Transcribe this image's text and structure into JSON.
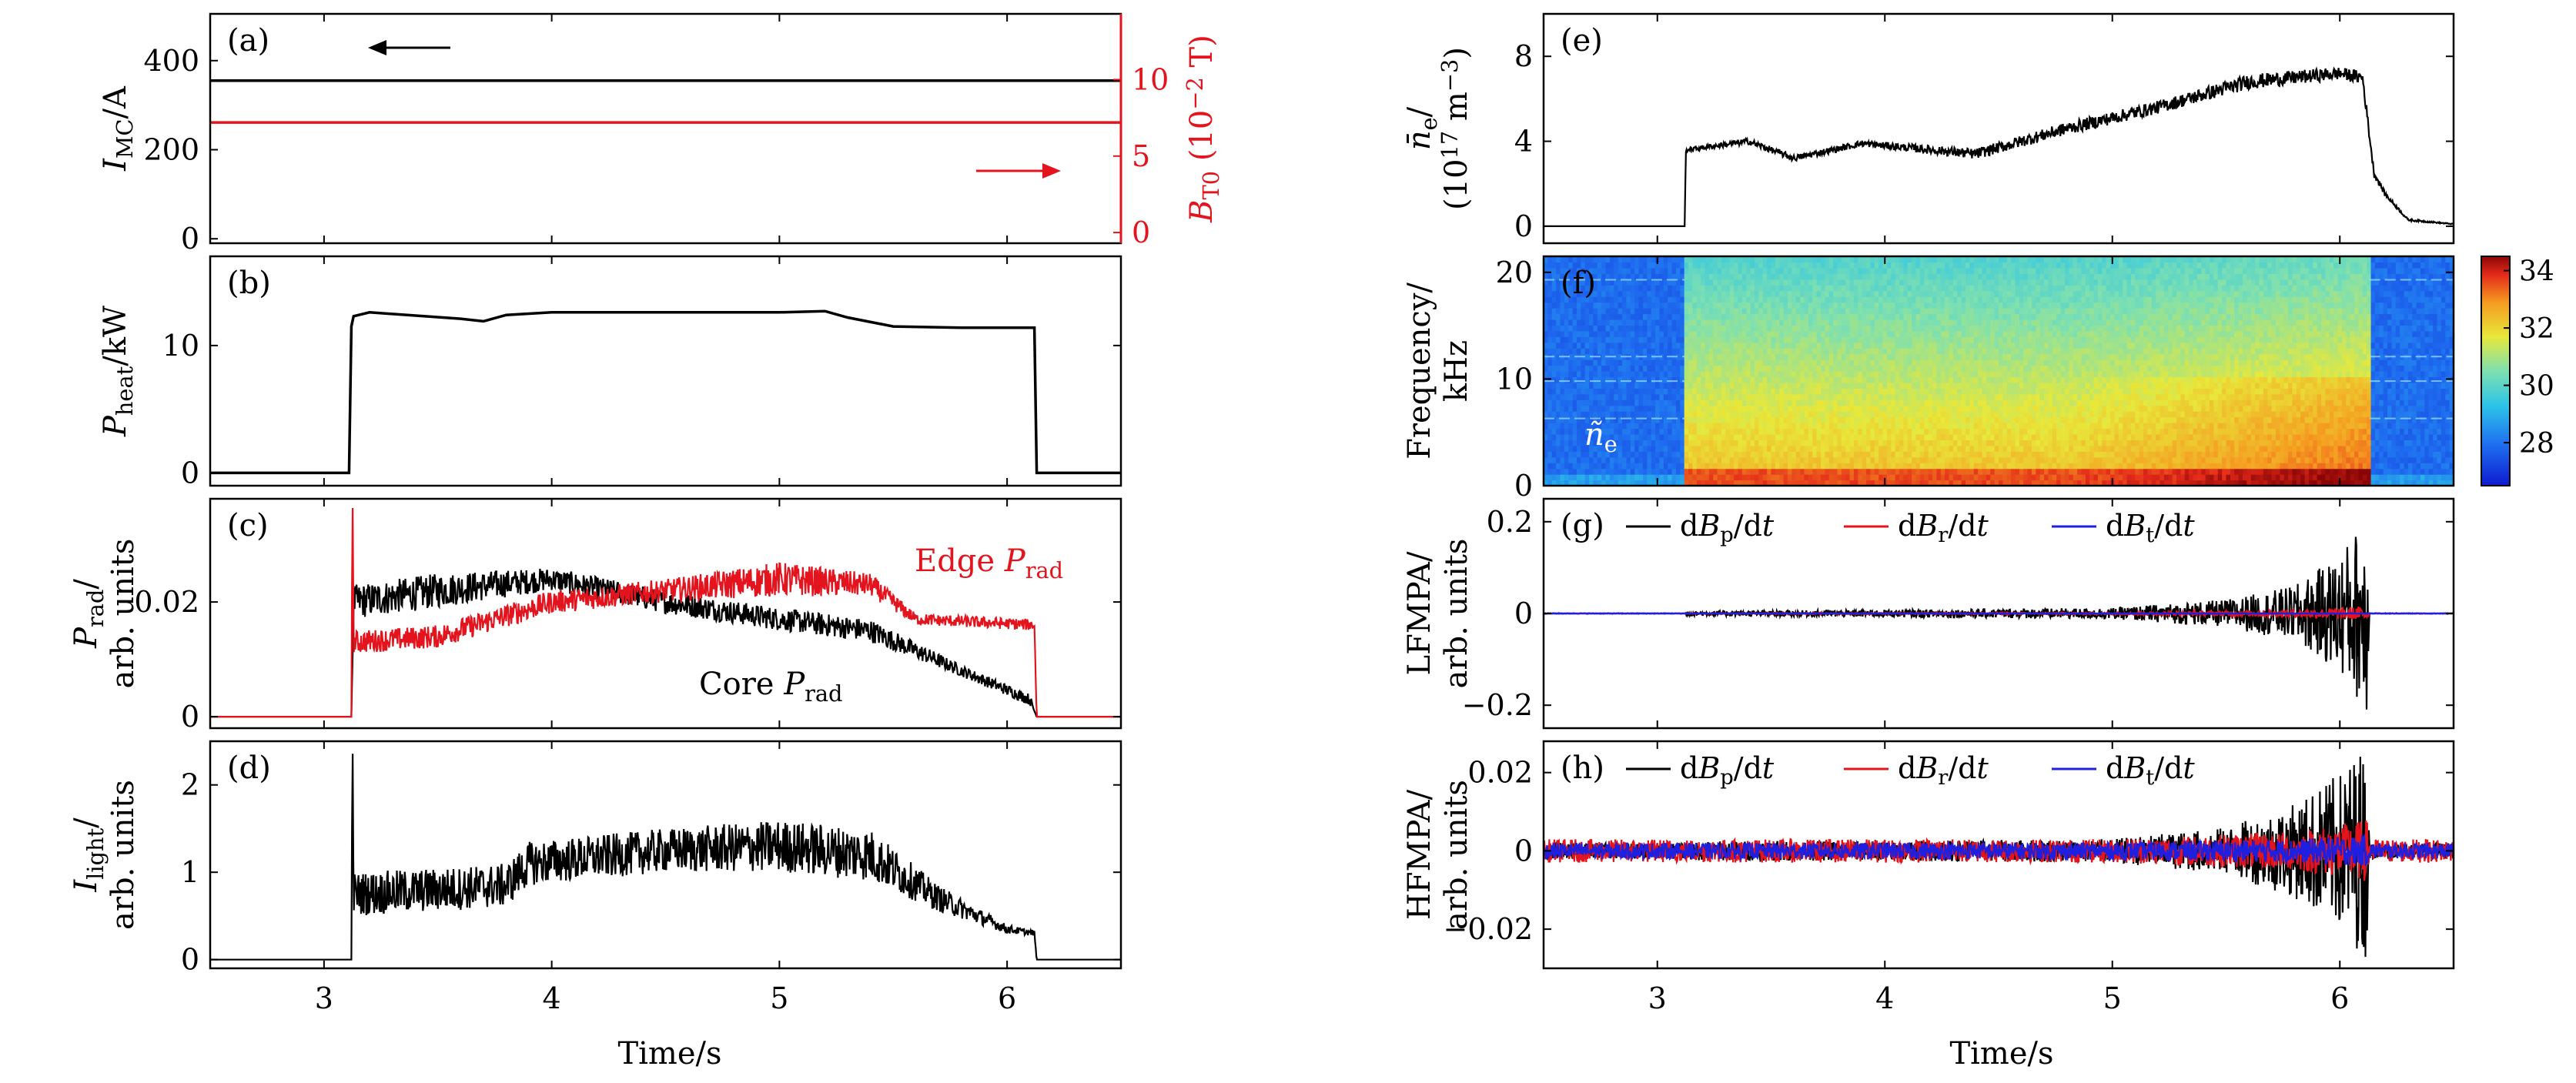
{
  "figure": {
    "left_xlabel": "Time/s",
    "right_xlabel": "Time/s"
  },
  "chart_data": [
    {
      "id": "a",
      "label": "(a)",
      "type": "line",
      "xlim": [
        2.5,
        6.5
      ],
      "xticks": [
        3,
        4,
        5,
        6
      ],
      "ylim": [
        -10,
        505
      ],
      "yticks": [
        0,
        200,
        400
      ],
      "ylabel": "I_MC/A",
      "y2label": "B_T0 (10^-2 T)",
      "y2lim": [
        -0.7,
        14.3
      ],
      "y2ticks": [
        0,
        5,
        10
      ],
      "y2color": "#e4141e",
      "annotations": [
        {
          "kind": "arrow",
          "direction": "left",
          "color": "#000000",
          "axis": "left"
        },
        {
          "kind": "arrow",
          "direction": "right",
          "color": "#e4141e",
          "axis": "right"
        }
      ],
      "series": [
        {
          "axis": "left",
          "color": "#000000",
          "x": [
            2.5,
            6.5
          ],
          "y": [
            355,
            355
          ]
        },
        {
          "axis": "right",
          "color": "#e4141e",
          "x": [
            2.5,
            6.5
          ],
          "y": [
            7.2,
            7.2
          ]
        }
      ]
    },
    {
      "id": "b",
      "label": "(b)",
      "type": "line",
      "xlim": [
        2.5,
        6.5
      ],
      "xticks": [
        3,
        4,
        5,
        6
      ],
      "ylim": [
        -1,
        17
      ],
      "yticks": [
        0,
        10
      ],
      "ylabel": "P_heat/kW",
      "series": [
        {
          "color": "#000000",
          "x": [
            2.5,
            3.11,
            3.12,
            3.13,
            3.2,
            3.6,
            3.7,
            3.8,
            4.0,
            4.5,
            5.0,
            5.2,
            5.3,
            5.5,
            5.8,
            6.12,
            6.13,
            6.5
          ],
          "y": [
            0,
            0,
            11.5,
            12.3,
            12.6,
            12.1,
            11.9,
            12.4,
            12.6,
            12.6,
            12.6,
            12.7,
            12.2,
            11.5,
            11.4,
            11.4,
            0,
            0
          ]
        }
      ]
    },
    {
      "id": "c",
      "label": "(c)",
      "type": "line",
      "xlim": [
        2.5,
        6.5
      ],
      "xticks": [
        3,
        4,
        5,
        6
      ],
      "ylim": [
        -0.002,
        0.038
      ],
      "yticks": [
        0,
        0.02
      ],
      "yticklabels": [
        "0",
        "0.02"
      ],
      "ylabel": "P_rad/ arb. units",
      "annotations": [
        {
          "kind": "text",
          "text": "Edge P_rad",
          "color": "#e4141e"
        },
        {
          "kind": "text",
          "text": "Core P_rad",
          "color": "#000000"
        }
      ],
      "series": [
        {
          "name": "Core P_rad",
          "color": "#000000",
          "kind": "noisy_trace",
          "x": [
            2.5,
            3.12,
            3.13,
            3.5,
            4.0,
            4.5,
            5.0,
            5.4,
            5.8,
            6.1,
            6.13,
            6.5
          ],
          "y": [
            0,
            0,
            0.02,
            0.022,
            0.024,
            0.02,
            0.017,
            0.015,
            0.008,
            0.003,
            0,
            0
          ],
          "noise": [
            0,
            0,
            0.003,
            0.003,
            0.002,
            0.002,
            0.002,
            0.002,
            0.001,
            0.001,
            0,
            0
          ]
        },
        {
          "name": "Edge P_rad",
          "color": "#e4141e",
          "kind": "noisy_trace",
          "x": [
            2.5,
            3.12,
            3.125,
            3.13,
            3.5,
            4.0,
            4.5,
            5.0,
            5.4,
            5.6,
            6.12,
            6.13,
            6.5
          ],
          "y": [
            0,
            0,
            0.04,
            0.013,
            0.014,
            0.02,
            0.022,
            0.024,
            0.023,
            0.017,
            0.016,
            0,
            0
          ],
          "noise": [
            0,
            0,
            0,
            0.002,
            0.002,
            0.002,
            0.002,
            0.003,
            0.002,
            0.001,
            0.001,
            0,
            0
          ]
        }
      ]
    },
    {
      "id": "d",
      "label": "(d)",
      "type": "line",
      "xlim": [
        2.5,
        6.5
      ],
      "xticks": [
        3,
        4,
        5,
        6
      ],
      "ylim": [
        -0.1,
        2.5
      ],
      "yticks": [
        0,
        1,
        2
      ],
      "ylabel": "I_light/ arb. units",
      "series": [
        {
          "color": "#000000",
          "kind": "noisy_trace",
          "x": [
            2.5,
            3.12,
            3.125,
            3.13,
            3.5,
            3.8,
            3.9,
            4.5,
            5.0,
            5.4,
            5.7,
            6.0,
            6.12,
            6.13,
            6.5
          ],
          "y": [
            0,
            0,
            2.6,
            0.75,
            0.8,
            0.85,
            1.1,
            1.25,
            1.3,
            1.2,
            0.7,
            0.35,
            0.3,
            0,
            0
          ],
          "noise": [
            0,
            0,
            0,
            0.25,
            0.25,
            0.25,
            0.25,
            0.25,
            0.3,
            0.3,
            0.15,
            0.05,
            0.03,
            0,
            0
          ]
        }
      ]
    },
    {
      "id": "e",
      "label": "(e)",
      "type": "line",
      "xlim": [
        2.5,
        6.5
      ],
      "xticks": [
        3,
        4,
        5,
        6
      ],
      "ylim": [
        -0.8,
        10
      ],
      "yticks": [
        0,
        4,
        8
      ],
      "ylabel": "n_e/ (10^17 m^-3)",
      "series": [
        {
          "color": "#000000",
          "kind": "noisy_trace",
          "x": [
            2.5,
            3.12,
            3.125,
            3.13,
            3.4,
            3.6,
            3.9,
            4.2,
            4.4,
            4.8,
            5.2,
            5.6,
            6.0,
            6.1,
            6.15,
            6.2,
            6.3,
            6.5
          ],
          "y": [
            0,
            0,
            3.5,
            3.6,
            4.0,
            3.2,
            3.9,
            3.6,
            3.4,
            4.6,
            5.6,
            6.8,
            7.2,
            7.0,
            2.5,
            1.5,
            0.3,
            0.1
          ],
          "noise": [
            0,
            0,
            0,
            0.1,
            0.15,
            0.15,
            0.15,
            0.2,
            0.25,
            0.3,
            0.3,
            0.35,
            0.3,
            0.3,
            0.2,
            0.1,
            0.05,
            0.02
          ]
        }
      ]
    },
    {
      "id": "f",
      "label": "(f)",
      "type": "heatmap",
      "xlim": [
        2.5,
        6.5
      ],
      "xticks": [
        3,
        4,
        5,
        6
      ],
      "ylim": [
        0,
        21.5
      ],
      "yticks": [
        0,
        10,
        20
      ],
      "ylabel": "Frequency/ kHz",
      "annotations": [
        {
          "kind": "text",
          "text": "ñ_e",
          "color": "#ffffff"
        }
      ],
      "plasma_interval": [
        3.12,
        6.13
      ],
      "colorbar": {
        "min": 26.5,
        "max": 34.5,
        "ticks": [
          28,
          30,
          32,
          34
        ]
      }
    },
    {
      "id": "g",
      "label": "(g)",
      "type": "line",
      "xlim": [
        2.5,
        6.5
      ],
      "xticks": [
        3,
        4,
        5,
        6
      ],
      "ylim": [
        -0.25,
        0.25
      ],
      "yticks": [
        -0.2,
        0,
        0.2
      ],
      "yticklabels": [
        "−0.2",
        "0",
        "0.2"
      ],
      "ylabel": "LFMPA/ arb. units",
      "legend": {
        "placement": "top",
        "entries": [
          "dB_p/dt",
          "dB_r/dt",
          "dB_t/dt"
        ]
      },
      "series": [
        {
          "name": "dB_p/dt",
          "color": "#000000",
          "kind": "envelope",
          "x": [
            2.5,
            3.12,
            3.13,
            4.0,
            5.0,
            5.5,
            5.8,
            6.0,
            6.12,
            6.13,
            6.5
          ],
          "amp": [
            0,
            0,
            0.005,
            0.008,
            0.012,
            0.03,
            0.06,
            0.13,
            0.22,
            0,
            0
          ]
        },
        {
          "name": "dB_r/dt",
          "color": "#e4141e",
          "kind": "envelope",
          "x": [
            2.5,
            3.12,
            3.13,
            5.0,
            5.8,
            6.12,
            6.13,
            6.5
          ],
          "amp": [
            0,
            0,
            0.001,
            0.002,
            0.008,
            0.015,
            0,
            0
          ]
        },
        {
          "name": "dB_t/dt",
          "color": "#1f1fe0",
          "kind": "envelope",
          "x": [
            2.5,
            6.5
          ],
          "amp": [
            0.0008,
            0.0008
          ]
        }
      ]
    },
    {
      "id": "h",
      "label": "(h)",
      "type": "line",
      "xlim": [
        2.5,
        6.5
      ],
      "xticks": [
        3,
        4,
        5,
        6
      ],
      "ylim": [
        -0.03,
        0.028
      ],
      "yticks": [
        -0.02,
        0,
        0.02
      ],
      "yticklabels": [
        "−0.02",
        "0",
        "0.02"
      ],
      "ylabel": "HFMPA/ arb. units",
      "legend": {
        "placement": "top",
        "entries": [
          "dB_p/dt",
          "dB_r/dt",
          "dB_t/dt"
        ]
      },
      "series": [
        {
          "name": "dB_p/dt",
          "color": "#000000",
          "kind": "envelope",
          "x": [
            2.5,
            3.12,
            3.13,
            4.0,
            5.0,
            5.5,
            5.8,
            6.0,
            6.12,
            6.13,
            6.5
          ],
          "amp": [
            0.002,
            0.002,
            0.0025,
            0.0025,
            0.003,
            0.006,
            0.012,
            0.02,
            0.028,
            0.002,
            0.002
          ]
        },
        {
          "name": "dB_r/dt",
          "color": "#e4141e",
          "kind": "envelope",
          "x": [
            2.5,
            5.0,
            5.8,
            6.12,
            6.13,
            6.5
          ],
          "amp": [
            0.003,
            0.003,
            0.005,
            0.008,
            0.003,
            0.003
          ]
        },
        {
          "name": "dB_t/dt",
          "color": "#1f1fe0",
          "kind": "envelope",
          "x": [
            2.5,
            5.0,
            5.8,
            6.12,
            6.13,
            6.5
          ],
          "amp": [
            0.002,
            0.0022,
            0.003,
            0.004,
            0.002,
            0.002
          ]
        }
      ]
    }
  ]
}
